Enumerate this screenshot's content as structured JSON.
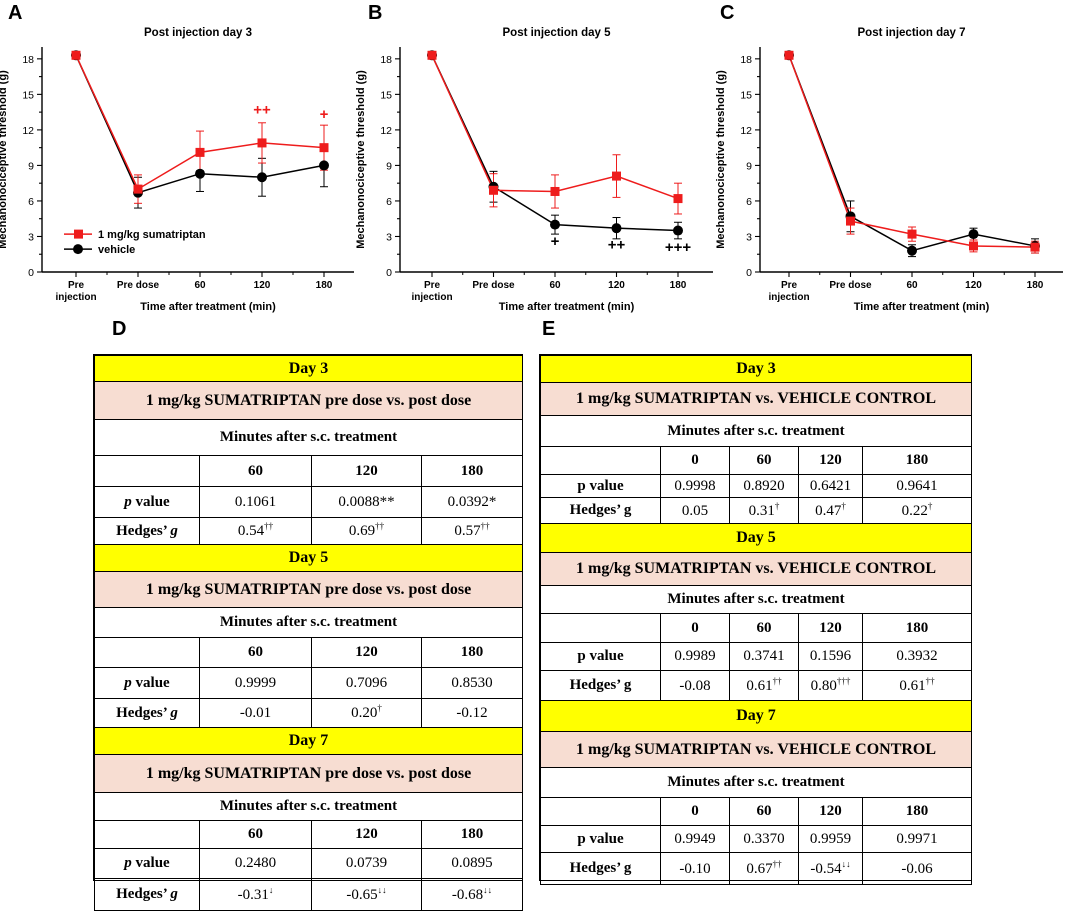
{
  "panel_letters": {
    "A": "A",
    "B": "B",
    "C": "C",
    "D": "D",
    "E": "E"
  },
  "colors": {
    "sumatriptan": "#ee1c1c",
    "vehicle": "#000000",
    "day_header": "#ffff00",
    "comparison_header": "#f7ddd2"
  },
  "chart_data": [
    {
      "type": "line",
      "title": "Post injection day 3",
      "xlabel": "Time after treatment (min)",
      "ylabel": "Mechanonociceptive threshold (g)",
      "categories": [
        "Pre\ninjection",
        "Pre dose",
        "60",
        "120",
        "180"
      ],
      "ylim": [
        0,
        19
      ],
      "yticks": [
        0,
        3,
        6,
        9,
        12,
        15,
        18
      ],
      "legend": {
        "position": "bottom-left",
        "entries": [
          "1 mg/kg sumatriptan",
          "vehicle"
        ]
      },
      "series": [
        {
          "name": "1 mg/kg sumatriptan",
          "color": "#ee1c1c",
          "marker": "square",
          "values": [
            18.3,
            7.0,
            10.1,
            10.9,
            10.5
          ],
          "errors": [
            0.2,
            1.2,
            1.8,
            1.7,
            1.9
          ]
        },
        {
          "name": "vehicle",
          "color": "#000000",
          "marker": "circle",
          "values": [
            18.3,
            6.7,
            8.3,
            8.0,
            9.0
          ],
          "errors": [
            0.2,
            1.3,
            1.5,
            1.6,
            1.8
          ]
        }
      ],
      "annotations": [
        {
          "text": "++",
          "category": 3,
          "y": 13.3,
          "color": "#ee1c1c"
        },
        {
          "text": "+",
          "category": 4,
          "y": 12.9,
          "color": "#ee1c1c"
        }
      ]
    },
    {
      "type": "line",
      "title": "Post injection day 5",
      "xlabel": "Time after treatment (min)",
      "ylabel": "Mechanonociceptive threshold (g)",
      "categories": [
        "Pre\ninjection",
        "Pre dose",
        "60",
        "120",
        "180"
      ],
      "ylim": [
        0,
        19
      ],
      "yticks": [
        0,
        3,
        6,
        9,
        12,
        15,
        18
      ],
      "series": [
        {
          "name": "1 mg/kg sumatriptan",
          "color": "#ee1c1c",
          "marker": "square",
          "values": [
            18.3,
            6.9,
            6.8,
            8.1,
            6.2
          ],
          "errors": [
            0.2,
            1.4,
            1.4,
            1.8,
            1.3
          ]
        },
        {
          "name": "vehicle",
          "color": "#000000",
          "marker": "circle",
          "values": [
            18.3,
            7.2,
            4.0,
            3.7,
            3.5
          ],
          "errors": [
            0.2,
            1.3,
            0.8,
            0.9,
            0.7
          ]
        }
      ],
      "annotations": [
        {
          "text": "+",
          "category": 2,
          "y": 2.2,
          "color": "#000000"
        },
        {
          "text": "++",
          "category": 3,
          "y": 1.9,
          "color": "#000000"
        },
        {
          "text": "+++",
          "category": 4,
          "y": 1.7,
          "color": "#000000"
        }
      ]
    },
    {
      "type": "line",
      "title": "Post injection day 7",
      "xlabel": "Time after treatment (min)",
      "ylabel": "Mechanonociceptive threshold (g)",
      "categories": [
        "Pre\ninjection",
        "Pre dose",
        "60",
        "120",
        "180"
      ],
      "ylim": [
        0,
        19
      ],
      "yticks": [
        0,
        3,
        6,
        9,
        12,
        15,
        18
      ],
      "series": [
        {
          "name": "1 mg/kg sumatriptan",
          "color": "#ee1c1c",
          "marker": "square",
          "values": [
            18.3,
            4.3,
            3.2,
            2.2,
            2.1
          ],
          "errors": [
            0.2,
            1.1,
            0.6,
            0.5,
            0.5
          ]
        },
        {
          "name": "vehicle",
          "color": "#000000",
          "marker": "circle",
          "values": [
            18.3,
            4.7,
            1.8,
            3.2,
            2.2
          ],
          "errors": [
            0.2,
            1.3,
            0.5,
            0.5,
            0.6
          ]
        }
      ],
      "annotations": []
    }
  ],
  "table_d": {
    "blocks": [
      {
        "day": "Day 3",
        "comparison": "1 mg/kg SUMATRIPTAN pre dose vs. post dose",
        "minutes": "Minutes after s.c. treatment",
        "headers": [
          "60",
          "120",
          "180"
        ],
        "p_label_em": "p",
        "p_label_rest": " value",
        "p_values": [
          "0.1061",
          "0.0088**",
          "0.0392*"
        ],
        "g_label": "Hedges’ ",
        "g_label_em": "g",
        "g_values": [
          [
            "0.54",
            "††"
          ],
          [
            "0.69",
            "††"
          ],
          [
            "0.57",
            "††"
          ]
        ]
      },
      {
        "day": "Day 5",
        "comparison": "1 mg/kg SUMATRIPTAN pre dose vs. post dose",
        "minutes": "Minutes after s.c. treatment",
        "headers": [
          "60",
          "120",
          "180"
        ],
        "p_label_em": "p",
        "p_label_rest": " value",
        "p_values": [
          "0.9999",
          "0.7096",
          "0.8530"
        ],
        "g_label": "Hedges’ ",
        "g_label_em": "g",
        "g_values": [
          [
            "-0.01",
            ""
          ],
          [
            "0.20",
            "†"
          ],
          [
            "-0.12",
            ""
          ]
        ]
      },
      {
        "day": "Day 7",
        "comparison": "1 mg/kg SUMATRIPTAN pre dose vs. post dose",
        "minutes": "Minutes after s.c. treatment",
        "headers": [
          "60",
          "120",
          "180"
        ],
        "p_label_em": "p",
        "p_label_rest": " value",
        "p_values": [
          "0.2480",
          "0.0739",
          "0.0895"
        ],
        "g_label": "Hedges’ ",
        "g_label_em": "g",
        "g_values": [
          [
            "-0.31",
            "↓"
          ],
          [
            "-0.65",
            "↓↓"
          ],
          [
            "-0.68",
            "↓↓"
          ]
        ]
      }
    ]
  },
  "table_e": {
    "blocks": [
      {
        "day": "Day 3",
        "comparison": "1 mg/kg SUMATRIPTAN vs. VEHICLE CONTROL",
        "minutes": "Minutes after s.c. treatment",
        "headers": [
          "0",
          "60",
          "120",
          "180"
        ],
        "p_label": "p value",
        "p_values": [
          "0.9998",
          "0.8920",
          "0.6421",
          "0.9641"
        ],
        "g_label": "Hedges’ g",
        "g_values": [
          [
            "0.05",
            ""
          ],
          [
            "0.31",
            "†"
          ],
          [
            "0.47",
            "†"
          ],
          [
            "0.22",
            "†"
          ]
        ]
      },
      {
        "day": "Day 5",
        "comparison": "1 mg/kg SUMATRIPTAN vs. VEHICLE CONTROL",
        "minutes": "Minutes after s.c. treatment",
        "headers": [
          "0",
          "60",
          "120",
          "180"
        ],
        "p_label": "p value",
        "p_values": [
          "0.9989",
          "0.3741",
          "0.1596",
          "0.3932"
        ],
        "g_label": "Hedges’ g",
        "g_values": [
          [
            "-0.08",
            ""
          ],
          [
            "0.61",
            "††"
          ],
          [
            "0.80",
            "†††"
          ],
          [
            "0.61",
            "††"
          ]
        ]
      },
      {
        "day": "Day 7",
        "comparison": "1 mg/kg SUMATRIPTAN vs. VEHICLE CONTROL",
        "minutes": "Minutes after s.c. treatment",
        "headers": [
          "0",
          "60",
          "120",
          "180"
        ],
        "p_label": "p value",
        "p_values": [
          "0.9949",
          "0.3370",
          "0.9959",
          "0.9971"
        ],
        "g_label": "Hedges’ g",
        "g_values": [
          [
            "-0.10",
            ""
          ],
          [
            "0.67",
            "††"
          ],
          [
            "-0.54",
            "↓↓"
          ],
          [
            "-0.06",
            ""
          ]
        ]
      }
    ]
  }
}
